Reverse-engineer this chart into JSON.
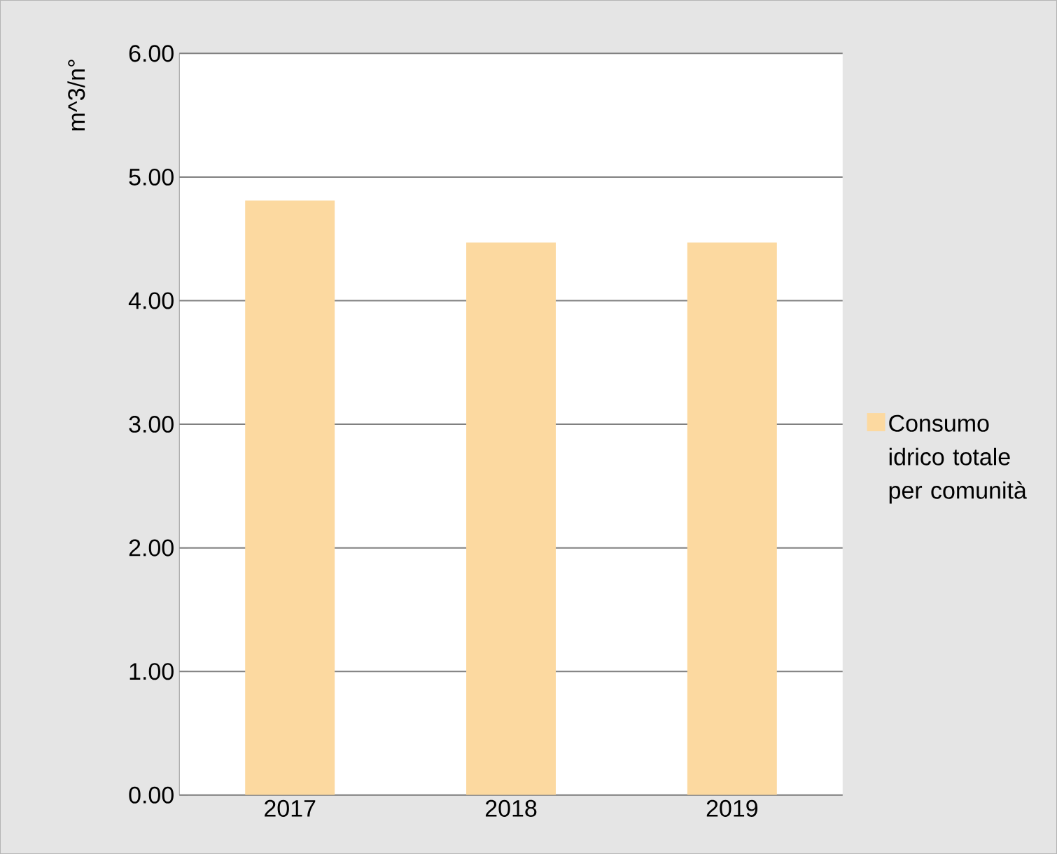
{
  "chart_data": {
    "type": "bar",
    "ylabel": "m^3/n°",
    "categories": [
      "2017",
      "2018",
      "2019"
    ],
    "series": [
      {
        "name": "Consumo idrico totale per comunità",
        "color": "#fcd9a0",
        "values": [
          4.81,
          4.47,
          4.47
        ]
      }
    ],
    "ylim": [
      0,
      6
    ],
    "yticks": [
      {
        "value": 0,
        "label": "0.00"
      },
      {
        "value": 1,
        "label": "1.00"
      },
      {
        "value": 2,
        "label": "2.00"
      },
      {
        "value": 3,
        "label": "3.00"
      },
      {
        "value": 4,
        "label": "4.00"
      },
      {
        "value": 5,
        "label": "5.00"
      },
      {
        "value": 6,
        "label": "6.00"
      }
    ],
    "grid": "y",
    "legend": "right"
  }
}
